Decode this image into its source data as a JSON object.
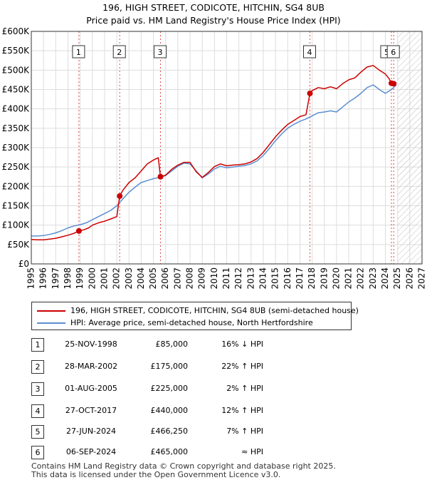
{
  "title_line1": "196, HIGH STREET, CODICOTE, HITCHIN, SG4 8UB",
  "title_line2": "Price paid vs. HM Land Registry's House Price Index (HPI)",
  "chart_data": {
    "type": "line",
    "xlim": [
      1995,
      2027
    ],
    "ylim": [
      0,
      600000
    ],
    "y_ticks": [
      0,
      50000,
      100000,
      150000,
      200000,
      250000,
      300000,
      350000,
      400000,
      450000,
      500000,
      550000,
      600000
    ],
    "y_tick_labels": [
      "£0",
      "£50K",
      "£100K",
      "£150K",
      "£200K",
      "£250K",
      "£300K",
      "£350K",
      "£400K",
      "£450K",
      "£500K",
      "£550K",
      "£600K"
    ],
    "x_ticks": [
      1995,
      1996,
      1997,
      1998,
      1999,
      2000,
      2001,
      2002,
      2003,
      2004,
      2005,
      2006,
      2007,
      2008,
      2009,
      2010,
      2011,
      2012,
      2013,
      2014,
      2015,
      2016,
      2017,
      2018,
      2019,
      2020,
      2021,
      2022,
      2023,
      2024,
      2025,
      2026,
      2027
    ],
    "grid": true,
    "future_hatch_from": 2025.0,
    "series": [
      {
        "name": "196, HIGH STREET, CODICOTE, HITCHIN, SG4 8UB (semi-detached house)",
        "color": "#cc0000",
        "x": [
          1995.0,
          1995.5,
          1996.0,
          1996.5,
          1997.0,
          1997.5,
          1998.0,
          1998.5,
          1998.9,
          1999.3,
          1999.7,
          2000.0,
          2000.5,
          2001.0,
          2001.5,
          2002.0,
          2002.24,
          2002.5,
          2003.0,
          2003.5,
          2004.0,
          2004.5,
          2005.0,
          2005.4,
          2005.58,
          2006.0,
          2006.5,
          2007.0,
          2007.5,
          2008.0,
          2008.5,
          2009.0,
          2009.5,
          2010.0,
          2010.5,
          2011.0,
          2011.5,
          2012.0,
          2012.5,
          2013.0,
          2013.5,
          2014.0,
          2014.5,
          2015.0,
          2015.5,
          2016.0,
          2016.5,
          2017.0,
          2017.5,
          2017.82,
          2018.0,
          2018.5,
          2019.0,
          2019.5,
          2020.0,
          2020.5,
          2021.0,
          2021.5,
          2022.0,
          2022.5,
          2023.0,
          2023.5,
          2024.0,
          2024.3,
          2024.49,
          2024.68,
          2024.9
        ],
        "y": [
          63000,
          62000,
          62000,
          64000,
          66000,
          70000,
          74000,
          79000,
          85000,
          88000,
          93000,
          100000,
          106000,
          110000,
          116000,
          122000,
          175000,
          190000,
          210000,
          222000,
          240000,
          258000,
          268000,
          274000,
          225000,
          229000,
          244000,
          255000,
          262000,
          262000,
          238000,
          223000,
          236000,
          251000,
          258000,
          253000,
          255000,
          256000,
          258000,
          263000,
          272000,
          288000,
          308000,
          328000,
          345000,
          360000,
          370000,
          380000,
          385000,
          440000,
          447000,
          455000,
          452000,
          457000,
          452000,
          465000,
          475000,
          480000,
          495000,
          508000,
          512000,
          500000,
          490000,
          478000,
          466250,
          465000,
          468000
        ]
      },
      {
        "name": "HPI: Average price, semi-detached house, North Hertfordshire",
        "color": "#5b8fd1",
        "x": [
          1995.0,
          1995.5,
          1996.0,
          1996.5,
          1997.0,
          1997.5,
          1998.0,
          1998.5,
          1999.0,
          1999.5,
          2000.0,
          2000.5,
          2001.0,
          2001.5,
          2002.0,
          2002.5,
          2003.0,
          2003.5,
          2004.0,
          2004.5,
          2005.0,
          2005.5,
          2006.0,
          2006.5,
          2007.0,
          2007.5,
          2008.0,
          2008.5,
          2009.0,
          2009.5,
          2010.0,
          2010.5,
          2011.0,
          2011.5,
          2012.0,
          2012.5,
          2013.0,
          2013.5,
          2014.0,
          2014.5,
          2015.0,
          2015.5,
          2016.0,
          2016.5,
          2017.0,
          2017.5,
          2018.0,
          2018.5,
          2019.0,
          2019.5,
          2020.0,
          2020.5,
          2021.0,
          2021.5,
          2022.0,
          2022.5,
          2023.0,
          2023.5,
          2024.0,
          2024.5,
          2024.9
        ],
        "y": [
          72000,
          72000,
          73000,
          76000,
          80000,
          86000,
          93000,
          98000,
          101000,
          106000,
          114000,
          122000,
          130000,
          138000,
          150000,
          168000,
          185000,
          198000,
          210000,
          215000,
          220000,
          223000,
          228000,
          240000,
          252000,
          260000,
          258000,
          240000,
          222000,
          232000,
          245000,
          252000,
          248000,
          250000,
          252000,
          254000,
          258000,
          266000,
          280000,
          298000,
          318000,
          335000,
          350000,
          360000,
          368000,
          374000,
          382000,
          390000,
          392000,
          395000,
          392000,
          405000,
          418000,
          428000,
          440000,
          455000,
          462000,
          450000,
          440000,
          450000,
          462000
        ]
      }
    ],
    "sales": [
      {
        "n": "1",
        "x": 1998.9,
        "y": 85000
      },
      {
        "n": "2",
        "x": 2002.24,
        "y": 175000
      },
      {
        "n": "3",
        "x": 2005.58,
        "y": 225000
      },
      {
        "n": "4",
        "x": 2017.82,
        "y": 440000
      },
      {
        "n": "5",
        "x": 2024.49,
        "y": 466250
      },
      {
        "n": "6",
        "x": 2024.68,
        "y": 465000
      }
    ],
    "marker_color": "#cc0000",
    "grid_color": "#dddddd",
    "hpi_color": "#5b8fd1",
    "price_color": "#cc0000"
  },
  "legend": {
    "price_label": "196, HIGH STREET, CODICOTE, HITCHIN, SG4 8UB (semi-detached house)",
    "hpi_label": "HPI: Average price, semi-detached house, North Hertfordshire"
  },
  "table": [
    {
      "n": "1",
      "date": "25-NOV-1998",
      "price": "£85,000",
      "hpi": "16% ↓ HPI"
    },
    {
      "n": "2",
      "date": "28-MAR-2002",
      "price": "£175,000",
      "hpi": "22% ↑ HPI"
    },
    {
      "n": "3",
      "date": "01-AUG-2005",
      "price": "£225,000",
      "hpi": "2% ↑ HPI"
    },
    {
      "n": "4",
      "date": "27-OCT-2017",
      "price": "£440,000",
      "hpi": "12% ↑ HPI"
    },
    {
      "n": "5",
      "date": "27-JUN-2024",
      "price": "£466,250",
      "hpi": "7% ↑ HPI"
    },
    {
      "n": "6",
      "date": "06-SEP-2024",
      "price": "£465,000",
      "hpi": "≈ HPI"
    }
  ],
  "footer": {
    "line1": "Contains HM Land Registry data © Crown copyright and database right 2025.",
    "line2": "This data is licensed under the Open Government Licence v3.0."
  }
}
